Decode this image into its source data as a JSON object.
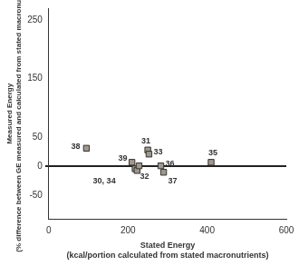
{
  "chart_data": {
    "type": "scatter",
    "x_label": [
      "Stated Energy",
      "(kcal/portion calculated from stated macronutrients)"
    ],
    "y_label": [
      "Measured Energy",
      "(% difference between GE measured and calculated from stated macronutrients)"
    ],
    "x": [
      95,
      210,
      218,
      223,
      228,
      250,
      253,
      283,
      290,
      410
    ],
    "values": [
      31,
      7,
      -4,
      -7,
      1,
      28,
      21,
      1,
      -10,
      7
    ],
    "point_labels": [
      "38",
      "39",
      "30, 34",
      null,
      "32",
      "31",
      "33",
      "36",
      "37",
      "35"
    ],
    "xlim": [
      0,
      600
    ],
    "xticks": [
      0,
      200,
      400,
      600
    ],
    "ylim": [
      -90,
      270
    ],
    "yticks": [
      -50,
      0,
      50,
      150,
      250
    ],
    "color": "#a0988c",
    "marker": "square",
    "grid": false
  }
}
